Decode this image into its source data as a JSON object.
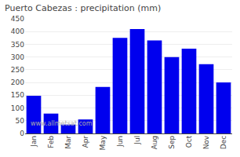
{
  "chart_data": {
    "type": "bar",
    "title": "Puerto Cabezas : precipitation (mm)",
    "categories": [
      "Jan",
      "Feb",
      "Mar",
      "Apr",
      "May",
      "Jun",
      "Jul",
      "Aug",
      "Sep",
      "Oct",
      "Nov",
      "Dec"
    ],
    "values": [
      148,
      78,
      35,
      55,
      183,
      375,
      410,
      365,
      300,
      333,
      272,
      200
    ],
    "color": "#0000ee",
    "ylim": [
      0,
      450
    ],
    "yticks": [
      0,
      50,
      100,
      150,
      200,
      250,
      300,
      350,
      400,
      450
    ],
    "grid": true,
    "annotations": [
      "www.allmetsat.com"
    ]
  }
}
